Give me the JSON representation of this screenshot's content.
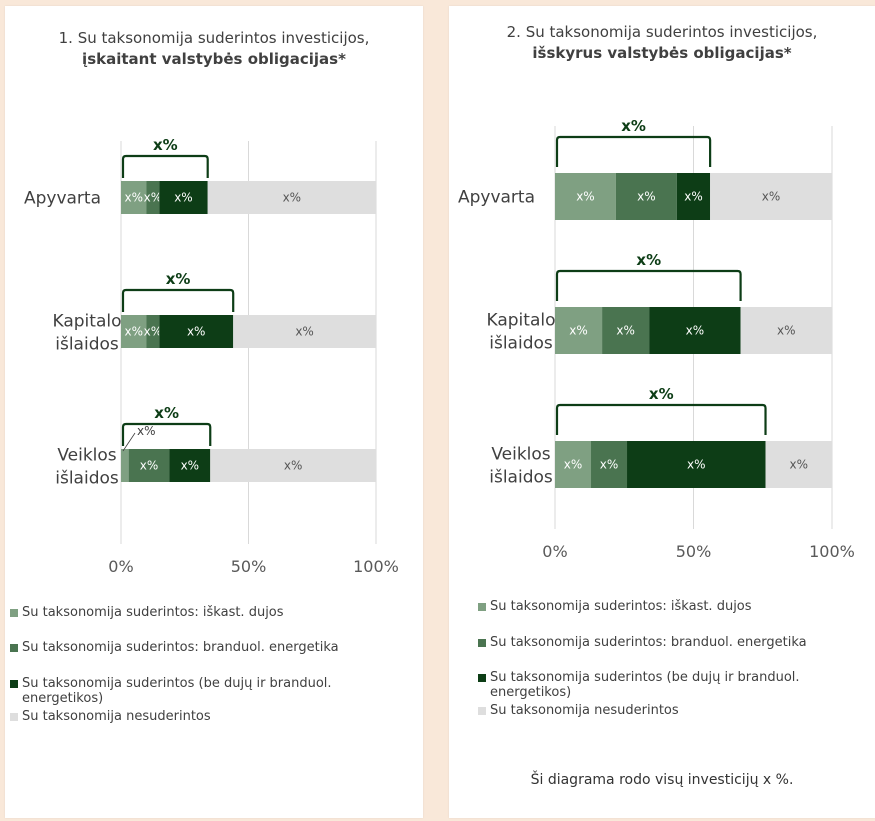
{
  "legend": [
    {
      "label": "Su taksonomija suderintos: iškast. dujos",
      "color": "#7fa082"
    },
    {
      "label": "Su taksonomija suderintos: branduol. energetika",
      "color": "#4a7450"
    },
    {
      "label": "Su taksonomija suderintos (be dujų ir branduol. energetikos)",
      "color": "#0d3d16"
    },
    {
      "label": "Su taksonomija nesuderintos",
      "color": "#dedede"
    }
  ],
  "footnote": "Ši diagrama rodo visų investicijų x %.",
  "chart_data": [
    {
      "type": "bar",
      "stacked": true,
      "orientation": "horizontal",
      "title": "1. Su taksonomija suderintos investicijos,",
      "subtitle": "įskaitant valstybės obligacijas*",
      "categories": [
        "Apyvarta",
        "Kapitalo išlaidos",
        "Veiklos išlaidos"
      ],
      "xlim": [
        0,
        100
      ],
      "xticks": [
        "0%",
        "50%",
        "100%"
      ],
      "series": [
        {
          "name": "Su taksonomija suderintos: iškast. dujos",
          "values": [
            10,
            10,
            3
          ],
          "labels": [
            "x%",
            "x%",
            "x%"
          ]
        },
        {
          "name": "Su taksonomija suderintos: branduol. energetika",
          "values": [
            5,
            5,
            16
          ],
          "labels": [
            "x%",
            "x%",
            "x%"
          ]
        },
        {
          "name": "Su taksonomija suderintos (be dujų ir branduol. energetikos)",
          "values": [
            19,
            29,
            16
          ],
          "labels": [
            "x%",
            "x%",
            "x%"
          ]
        },
        {
          "name": "Su taksonomija nesuderintos",
          "values": [
            66,
            56,
            65
          ],
          "labels": [
            "x%",
            "x%",
            "x%"
          ]
        }
      ],
      "aligned_total_labels": [
        "x%",
        "x%",
        "x%"
      ]
    },
    {
      "type": "bar",
      "stacked": true,
      "orientation": "horizontal",
      "title": "2. Su taksonomija suderintos investicijos,",
      "subtitle": "išskyrus valstybės obligacijas*",
      "categories": [
        "Apyvarta",
        "Kapitalo išlaidos",
        "Veiklos išlaidos"
      ],
      "xlim": [
        0,
        100
      ],
      "xticks": [
        "0%",
        "50%",
        "100%"
      ],
      "series": [
        {
          "name": "Su taksonomija suderintos: iškast. dujos",
          "values": [
            22,
            17,
            13
          ],
          "labels": [
            "x%",
            "x%",
            "x%"
          ]
        },
        {
          "name": "Su taksonomija suderintos: branduol. energetika",
          "values": [
            22,
            17,
            13
          ],
          "labels": [
            "x%",
            "x%",
            "x%"
          ]
        },
        {
          "name": "Su taksonomija suderintos (be dujų ir branduol. energetikos)",
          "values": [
            12,
            33,
            50
          ],
          "labels": [
            "x%",
            "x%",
            "x%"
          ]
        },
        {
          "name": "Su taksonomija nesuderintos",
          "values": [
            44,
            33,
            24
          ],
          "labels": [
            "x%",
            "x%",
            "x%"
          ]
        }
      ],
      "aligned_total_labels": [
        "x%",
        "x%",
        "x%"
      ]
    }
  ]
}
